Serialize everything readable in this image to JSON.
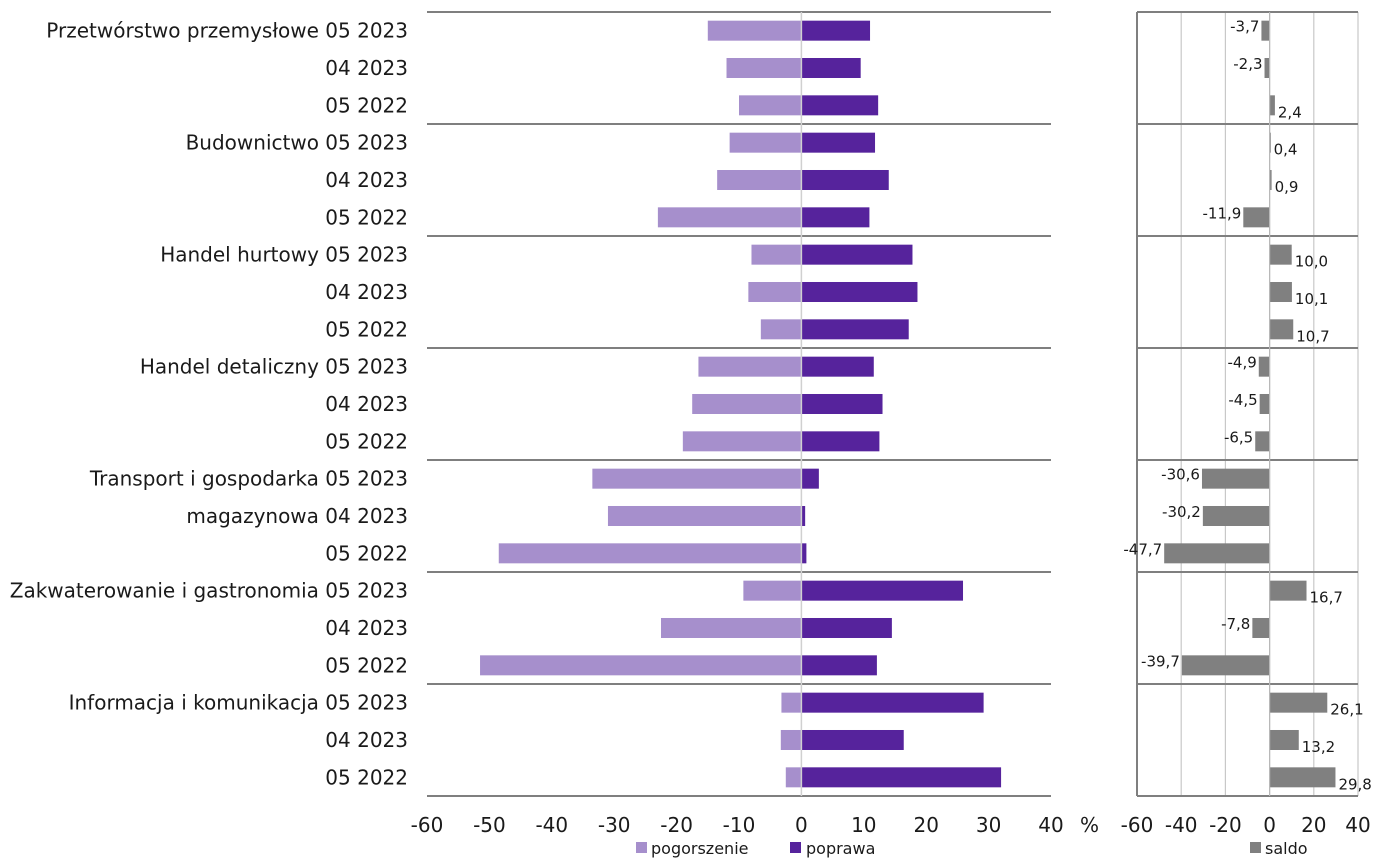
{
  "chart_data": [
    {
      "type": "bar",
      "orientation": "horizontal",
      "groups": [
        {
          "label": "Przetwórstwo przemysłowe",
          "periods": [
            "05 2023",
            "04 2023",
            "05 2022"
          ]
        },
        {
          "label": "Budownictwo",
          "periods": [
            "05 2023",
            "04 2023",
            "05 2022"
          ]
        },
        {
          "label": "Handel hurtowy",
          "periods": [
            "05 2023",
            "04 2023",
            "05 2022"
          ]
        },
        {
          "label": "Handel detaliczny",
          "periods": [
            "05 2023",
            "04 2023",
            "05 2022"
          ]
        },
        {
          "label": "Transport i gospodarka",
          "label_line2": "magazynowa",
          "periods": [
            "05 2023",
            "04 2023",
            "05 2022"
          ]
        },
        {
          "label": "Zakwaterowanie i gastronomia",
          "periods": [
            "05 2023",
            "04 2023",
            "05 2022"
          ]
        },
        {
          "label": "Informacja i komunikacja",
          "periods": [
            "05 2023",
            "04 2023",
            "05 2022"
          ]
        }
      ],
      "series": [
        {
          "name": "pogorszenie",
          "color": "#a68fcc",
          "values": [
            -15,
            -12,
            -10,
            -11.5,
            -13.5,
            -23,
            -8,
            -8.5,
            -6.5,
            -16.5,
            -17.5,
            -19,
            -33.5,
            -31,
            -48.5,
            -9.3,
            -22.5,
            -51.5,
            -3.2,
            -3.3,
            -2.5
          ]
        },
        {
          "name": "poprawa",
          "color": "#56239c",
          "values": [
            11,
            9.5,
            12.3,
            11.8,
            14,
            10.9,
            17.8,
            18.6,
            17.2,
            11.6,
            13,
            12.5,
            2.8,
            0.6,
            0.8,
            25.9,
            14.5,
            12.1,
            29.2,
            16.4,
            32
          ]
        }
      ],
      "xlim": [
        -60,
        40
      ],
      "xticks": [
        "-60",
        "-50",
        "-40",
        "-30",
        "-20",
        "-10",
        "0",
        "10",
        "20",
        "30",
        "40"
      ],
      "unit": "%",
      "grid": false
    },
    {
      "type": "bar",
      "orientation": "horizontal",
      "series": [
        {
          "name": "saldo",
          "color": "#808080",
          "values": [
            -3.7,
            -2.3,
            2.4,
            0.4,
            0.9,
            -11.9,
            10.0,
            10.1,
            10.7,
            -4.9,
            -4.5,
            -6.5,
            -30.6,
            -30.2,
            -47.7,
            16.7,
            -7.8,
            -39.7,
            26.1,
            13.2,
            29.8
          ],
          "labels": [
            "-3,7",
            "-2,3",
            "2,4",
            "0,4",
            "0,9",
            "-11,9",
            "10,0",
            "10,1",
            "10,7",
            "-4,9",
            "-4,5",
            "-6,5",
            "-30,6",
            "-30,2",
            "-47,7",
            "16,7",
            "-7,8",
            "-39,7",
            "26,1",
            "13,2",
            "29,8"
          ]
        }
      ],
      "xlim": [
        -60,
        40
      ],
      "xticks": [
        "-60",
        "-40",
        "-20",
        "0",
        "20",
        "40"
      ],
      "grid": true
    }
  ],
  "colors": {
    "pogorszenie": "#a68fcc",
    "poprawa": "#56239c",
    "saldo": "#808080",
    "separator": "#7f7f7f",
    "gridline": "#c8c8c8"
  }
}
